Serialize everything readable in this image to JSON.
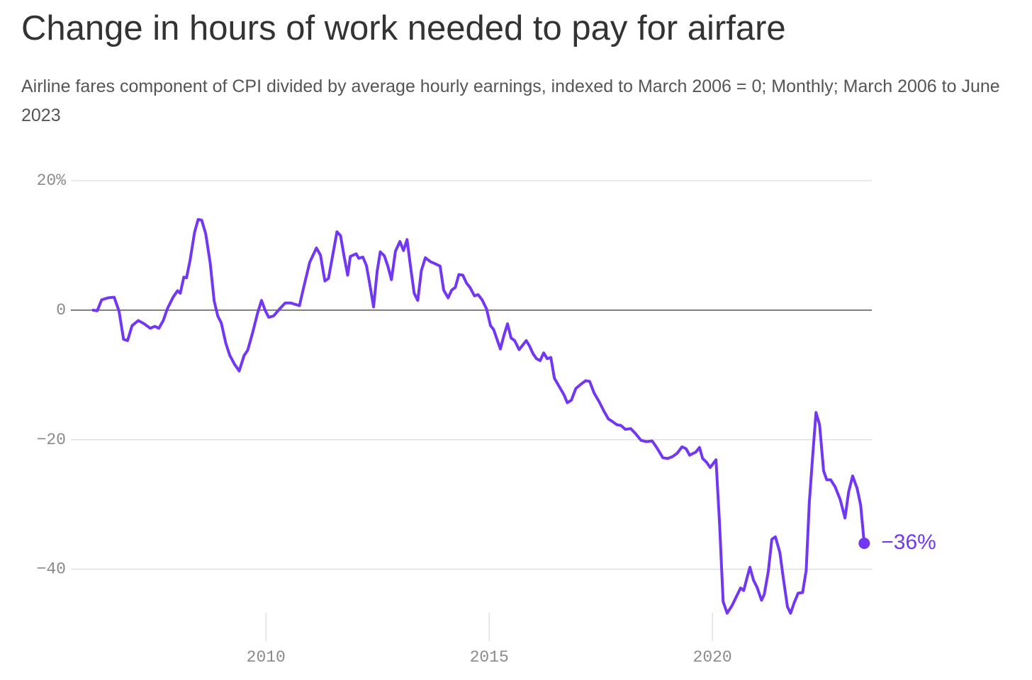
{
  "chart_data": {
    "type": "line",
    "title": "Change in hours of work needed to pay for airfare",
    "subtitle": "Airline fares component of CPI divided by average hourly earnings, indexed to March 2006 = 0; Monthly; March 2006 to June 2023",
    "x": [
      2006.13,
      2006.22,
      2006.32,
      2006.46,
      2006.6,
      2006.71,
      2006.81,
      2006.9,
      2007.0,
      2007.14,
      2007.27,
      2007.41,
      2007.51,
      2007.6,
      2007.7,
      2007.79,
      2007.92,
      2008.02,
      2008.08,
      2008.16,
      2008.22,
      2008.3,
      2008.4,
      2008.48,
      2008.56,
      2008.65,
      2008.75,
      2008.84,
      2008.92,
      2009.0,
      2009.1,
      2009.19,
      2009.3,
      2009.4,
      2009.51,
      2009.59,
      2009.7,
      2009.81,
      2009.9,
      2009.98,
      2010.06,
      2010.17,
      2010.32,
      2010.43,
      2010.56,
      2010.65,
      2010.75,
      2010.84,
      2010.98,
      2011.13,
      2011.22,
      2011.32,
      2011.4,
      2011.49,
      2011.59,
      2011.67,
      2011.75,
      2011.83,
      2011.89,
      2012.02,
      2012.08,
      2012.17,
      2012.25,
      2012.32,
      2012.41,
      2012.49,
      2012.56,
      2012.65,
      2012.73,
      2012.81,
      2012.9,
      2013.0,
      2013.08,
      2013.16,
      2013.24,
      2013.32,
      2013.4,
      2013.48,
      2013.57,
      2013.68,
      2013.78,
      2013.9,
      2013.98,
      2014.08,
      2014.16,
      2014.24,
      2014.32,
      2014.41,
      2014.49,
      2014.57,
      2014.67,
      2014.75,
      2014.84,
      2014.94,
      2015.03,
      2015.1,
      2015.17,
      2015.25,
      2015.33,
      2015.41,
      2015.49,
      2015.57,
      2015.67,
      2015.75,
      2015.83,
      2015.9,
      2015.98,
      2016.06,
      2016.14,
      2016.22,
      2016.3,
      2016.38,
      2016.46,
      2016.56,
      2016.67,
      2016.75,
      2016.84,
      2016.94,
      2017.06,
      2017.16,
      2017.25,
      2017.35,
      2017.46,
      2017.57,
      2017.67,
      2017.76,
      2017.86,
      2017.95,
      2018.05,
      2018.17,
      2018.27,
      2018.4,
      2018.52,
      2018.65,
      2018.76,
      2018.89,
      2019.0,
      2019.11,
      2019.21,
      2019.32,
      2019.41,
      2019.49,
      2019.63,
      2019.71,
      2019.78,
      2019.87,
      2019.95,
      2020.08,
      2020.16,
      2020.24,
      2020.33,
      2020.44,
      2020.56,
      2020.63,
      2020.7,
      2020.78,
      2020.84,
      2020.92,
      2021.0,
      2021.1,
      2021.16,
      2021.25,
      2021.33,
      2021.41,
      2021.51,
      2021.59,
      2021.68,
      2021.75,
      2021.83,
      2021.92,
      2022.02,
      2022.1,
      2022.17,
      2022.25,
      2022.32,
      2022.4,
      2022.49,
      2022.56,
      2022.65,
      2022.75,
      2022.86,
      2022.97,
      2023.05,
      2023.14,
      2023.24,
      2023.32,
      2023.4
    ],
    "series": [
      {
        "color": "#7237f2",
        "values": [
          0,
          -0.1,
          1.6,
          1.9,
          2.0,
          -0.2,
          -4.5,
          -4.7,
          -2.4,
          -1.6,
          -2.1,
          -2.8,
          -2.5,
          -2.8,
          -1.6,
          0.2,
          2.0,
          3.0,
          2.6,
          5.1,
          5.0,
          7.7,
          12.0,
          14.0,
          13.9,
          11.8,
          7.3,
          1.4,
          -0.9,
          -2.0,
          -5.1,
          -7.0,
          -8.4,
          -9.4,
          -7.0,
          -6.2,
          -3.5,
          -0.5,
          1.5,
          0,
          -1.1,
          -0.9,
          0.3,
          1.1,
          1.1,
          0.9,
          0.7,
          3.4,
          7.4,
          9.6,
          8.5,
          4.5,
          4.9,
          8.3,
          12.1,
          11.5,
          8.3,
          5.4,
          8.3,
          8.7,
          8.0,
          8.2,
          6.9,
          4.2,
          0.5,
          6.0,
          9.0,
          8.4,
          6.8,
          4.7,
          9.1,
          10.6,
          9.2,
          10.9,
          6.6,
          2.6,
          1.5,
          6.1,
          8.1,
          7.5,
          7.2,
          6.8,
          3.1,
          1.9,
          3.1,
          3.5,
          5.5,
          5.4,
          4.2,
          3.5,
          2.2,
          2.4,
          1.6,
          0.2,
          -2.4,
          -3.0,
          -4.4,
          -6.0,
          -3.9,
          -2.1,
          -4.3,
          -4.7,
          -6.1,
          -5.4,
          -4.7,
          -5.5,
          -6.7,
          -7.5,
          -7.8,
          -6.6,
          -7.5,
          -7.3,
          -10.5,
          -11.7,
          -13.0,
          -14.3,
          -13.9,
          -12.1,
          -11.4,
          -10.9,
          -11.0,
          -12.8,
          -14.1,
          -15.6,
          -16.8,
          -17.2,
          -17.7,
          -17.8,
          -18.4,
          -18.3,
          -19.0,
          -20.1,
          -20.3,
          -20.2,
          -21.3,
          -22.8,
          -22.9,
          -22.6,
          -22.1,
          -21.1,
          -21.4,
          -22.4,
          -21.9,
          -21.2,
          -22.9,
          -23.5,
          -24.3,
          -23.1,
          -33.0,
          -45.0,
          -46.8,
          -45.6,
          -43.9,
          -42.9,
          -43.3,
          -41.2,
          -39.7,
          -41.7,
          -42.8,
          -44.8,
          -43.9,
          -40.4,
          -35.4,
          -35.0,
          -37.4,
          -41.5,
          -45.8,
          -46.8,
          -45.2,
          -43.7,
          -43.6,
          -40.2,
          -29.7,
          -22.1,
          -15.8,
          -17.7,
          -24.8,
          -26.2,
          -26.2,
          -27.3,
          -29.2,
          -32.1,
          -28.1,
          -25.6,
          -27.5,
          -30.1,
          -36.0
        ]
      }
    ],
    "annotations": [
      {
        "text": "−36%",
        "x": 2023.4,
        "y": -36
      }
    ],
    "xlim": [
      2005.63,
      2023.57
    ],
    "ylim": [
      -50,
      20
    ],
    "xticks": [
      2010,
      2015,
      2020
    ],
    "yticks": [
      {
        "value": 20,
        "label": "20%"
      },
      0,
      {
        "value": -20,
        "label": "−20"
      },
      {
        "value": -40,
        "label": "−40"
      }
    ],
    "grid": true
  }
}
